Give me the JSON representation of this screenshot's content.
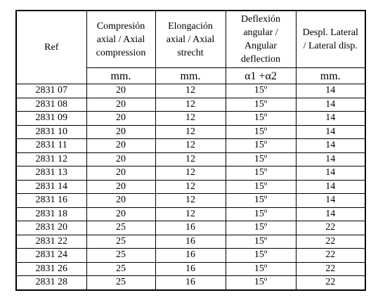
{
  "table": {
    "header": [
      [
        "Ref"
      ],
      [
        "Compresión",
        "axial / Axial",
        "compression"
      ],
      [
        "Elongación",
        "axial / Axial",
        "strecht"
      ],
      [
        "Deflexión",
        "angular /",
        "Angular",
        "deflection"
      ],
      [
        "Despl. Lateral",
        "/ Lateral disp."
      ]
    ],
    "units": [
      "mm.",
      "mm.",
      "α1 +α2",
      "mm."
    ],
    "rows": [
      [
        "2831 07",
        "20",
        "12",
        "15º",
        "14"
      ],
      [
        "2831 08",
        "20",
        "12",
        "15º",
        "14"
      ],
      [
        "2831 09",
        "20",
        "12",
        "15º",
        "14"
      ],
      [
        "2831 10",
        "20",
        "12",
        "15º",
        "14"
      ],
      [
        "2831 11",
        "20",
        "12",
        "15º",
        "14"
      ],
      [
        "2831 12",
        "20",
        "12",
        "15º",
        "14"
      ],
      [
        "2831 13",
        "20",
        "12",
        "15º",
        "14"
      ],
      [
        "2831 14",
        "20",
        "12",
        "15º",
        "14"
      ],
      [
        "2831 16",
        "20",
        "12",
        "15º",
        "14"
      ],
      [
        "2831 18",
        "20",
        "12",
        "15º",
        "14"
      ],
      [
        "2831 20",
        "25",
        "16",
        "15º",
        "22"
      ],
      [
        "2831 22",
        "25",
        "16",
        "15º",
        "22"
      ],
      [
        "2831 24",
        "25",
        "16",
        "15º",
        "22"
      ],
      [
        "2831 26",
        "25",
        "16",
        "15º",
        "22"
      ],
      [
        "2831 28",
        "25",
        "16",
        "15º",
        "22"
      ]
    ]
  }
}
